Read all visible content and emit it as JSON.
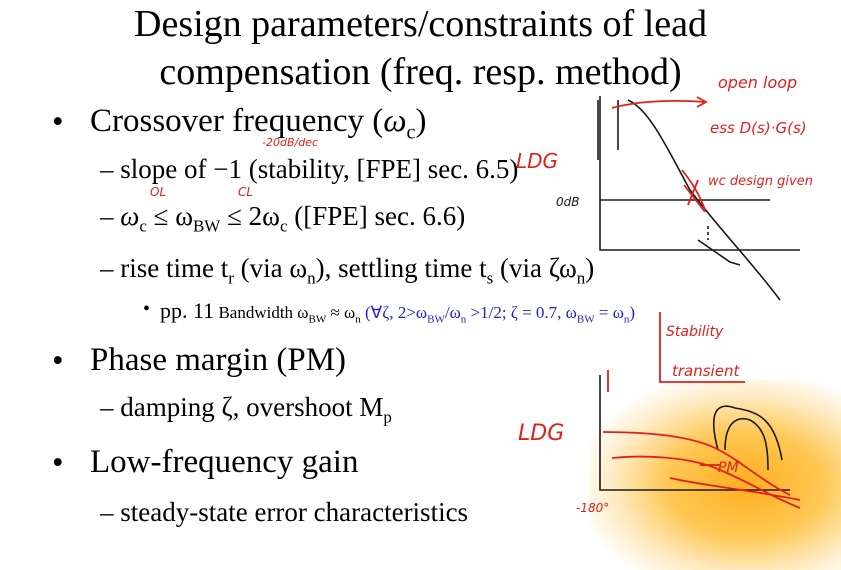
{
  "title": {
    "line1": "Design parameters/constraints of lead",
    "line2": "compensation (freq. resp. method)"
  },
  "bullets": {
    "crossover": "Crossover frequency (",
    "crossover_sym": "ω",
    "crossover_sub": "c",
    "crossover_end": ")",
    "slope": "slope of −1 (stability, [FPE] sec. 6.5)",
    "bw_a": "ω",
    "bw_a_sub": "c",
    "bw_le1": " ≤ ω",
    "bw_b_sub": "BW",
    "bw_le2": " ≤ 2ω",
    "bw_c_sub": "c",
    "bw_end": " ([FPE] sec. 6.6)",
    "rise_a": "rise time t",
    "rise_a_sub": "r",
    "rise_b": " (via ω",
    "rise_b_sub": "n",
    "rise_c": "), settling time  t",
    "rise_c_sub": "s",
    "rise_d": " (via ζω",
    "rise_d_sub": "n",
    "rise_e": ")",
    "pp_a": "pp. 11",
    "pp_b": " Bandwidth ω",
    "pp_b_sub": "BW",
    "pp_c": " ≈ ω",
    "pp_c_sub": "n",
    "pp_d": "  (∀ζ, 2>ω",
    "pp_d_sub": "BW",
    "pp_e": "/ω",
    "pp_e_sub": "n",
    "pp_f": " >1/2;  ζ = 0.7, ω",
    "pp_f_sub": "BW",
    "pp_g": " = ω",
    "pp_g_sub": "n",
    "pp_h": ")",
    "phase": "Phase margin (PM)",
    "damping_a": "damping ζ, overshoot M",
    "damping_sub": "p",
    "lowfreq": "Low-frequency gain",
    "steady": "steady-state error characteristics"
  },
  "annotations": {
    "open_loop": "open loop",
    "ess": "ess  D(s)·G(s)",
    "wc_design": "wc  design  given",
    "ldg": "LDG",
    "db20": "-20dB/dec",
    "odb": "0dB",
    "ol": "OL",
    "cl": "CL",
    "stability": "Stability",
    "transient": "transient",
    "ldg2": "LDG",
    "pm": "PM",
    "minus180": "-180°"
  },
  "colors": {
    "ink_red": "#e0201c",
    "ink_black": "#1a1a1a",
    "highlight": "#ffb020"
  }
}
